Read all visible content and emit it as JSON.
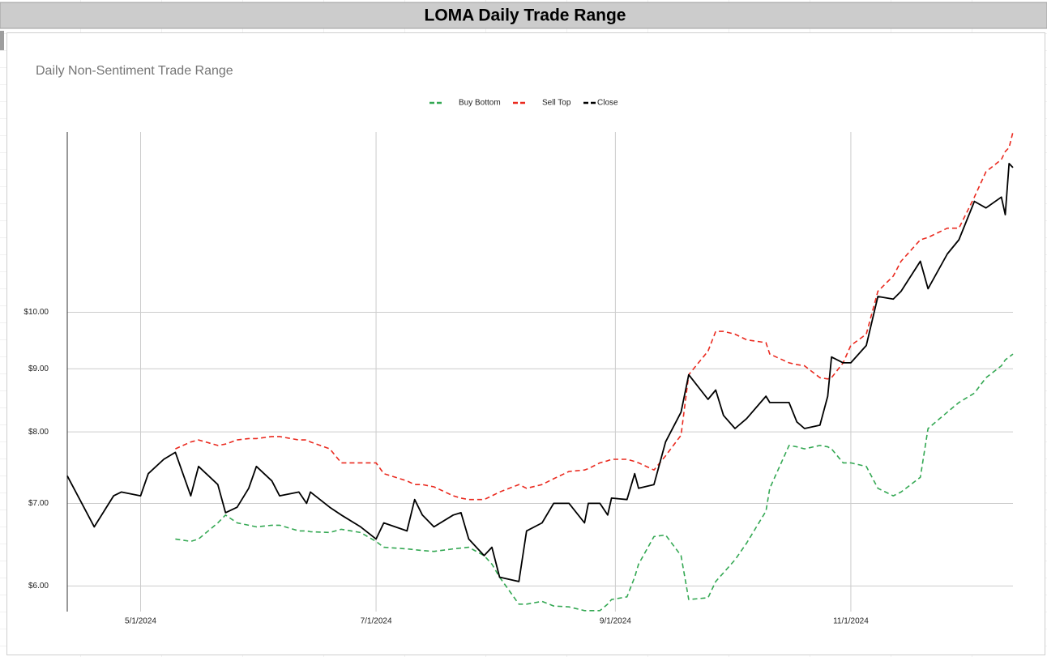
{
  "header": {
    "title": "LOMA Daily Trade Range"
  },
  "chart_data": {
    "type": "line",
    "title": "Daily Non-Sentiment Trade Range",
    "log_y": true,
    "grid": true,
    "legend": "top",
    "x": [
      "4/12/2024",
      "4/19/2024",
      "4/24/2024",
      "4/26/2024",
      "5/1/2024",
      "5/3/2024",
      "5/7/2024",
      "5/10/2024",
      "5/14/2024",
      "5/16/2024",
      "5/21/2024",
      "5/23/2024",
      "5/26/2024",
      "5/29/2024",
      "5/31/2024",
      "6/4/2024",
      "6/6/2024",
      "6/11/2024",
      "6/13/2024",
      "6/14/2024",
      "6/19/2024",
      "6/22/2024",
      "6/27/2024",
      "7/1/2024",
      "7/3/2024",
      "7/9/2024",
      "7/11/2024",
      "7/13/2024",
      "7/16/2024",
      "7/21/2024",
      "7/23/2024",
      "7/25/2024",
      "7/29/2024",
      "7/31/2024",
      "8/2/2024",
      "8/7/2024",
      "8/9/2024",
      "8/13/2024",
      "8/16/2024",
      "8/20/2024",
      "8/24/2024",
      "8/25/2024",
      "8/28/2024",
      "8/30/2024",
      "8/31/2024",
      "9/4/2024",
      "9/6/2024",
      "9/7/2024",
      "9/11/2024",
      "9/14/2024",
      "9/18/2024",
      "9/20/2024",
      "9/25/2024",
      "9/27/2024",
      "9/29/2024",
      "10/2/2024",
      "10/5/2024",
      "10/10/2024",
      "10/11/2024",
      "10/16/2024",
      "10/18/2024",
      "10/20/2024",
      "10/24/2024",
      "10/26/2024",
      "10/27/2024",
      "10/30/2024",
      "11/1/2024",
      "11/5/2024",
      "11/8/2024",
      "11/12/2024",
      "11/14/2024",
      "11/19/2024",
      "11/21/2024",
      "11/26/2024",
      "11/29/2024",
      "12/3/2024",
      "12/6/2024",
      "12/10/2024",
      "12/11/2024",
      "12/12/2024",
      "12/13/2024"
    ],
    "series": [
      {
        "name": "Buy Bottom",
        "color": "#34a853",
        "dashed": true,
        "values": [
          null,
          null,
          null,
          null,
          null,
          null,
          null,
          6.55,
          6.52,
          6.55,
          6.75,
          6.85,
          6.75,
          6.72,
          6.7,
          6.72,
          6.72,
          6.65,
          6.65,
          6.64,
          6.63,
          6.67,
          6.63,
          6.52,
          6.45,
          6.43,
          6.42,
          6.41,
          6.4,
          6.43,
          6.44,
          6.45,
          6.35,
          6.25,
          6.1,
          5.8,
          5.8,
          5.83,
          5.78,
          5.77,
          5.73,
          5.73,
          5.73,
          5.8,
          5.85,
          5.88,
          6.1,
          6.25,
          6.58,
          6.6,
          6.35,
          5.85,
          5.87,
          6.05,
          6.15,
          6.3,
          6.5,
          6.9,
          7.2,
          7.8,
          7.78,
          7.75,
          7.8,
          7.78,
          7.75,
          7.55,
          7.55,
          7.5,
          7.2,
          7.1,
          7.15,
          7.35,
          8.05,
          8.3,
          8.45,
          8.6,
          8.85,
          9.05,
          9.15,
          9.2,
          9.25
        ]
      },
      {
        "name": "Sell Top",
        "color": "#ea2a1f",
        "dashed": true,
        "values": [
          null,
          null,
          null,
          null,
          null,
          null,
          null,
          7.75,
          7.85,
          7.88,
          7.8,
          7.82,
          7.88,
          7.9,
          7.9,
          7.93,
          7.93,
          7.88,
          7.88,
          7.85,
          7.75,
          7.55,
          7.55,
          7.55,
          7.4,
          7.3,
          7.25,
          7.25,
          7.22,
          7.1,
          7.07,
          7.05,
          7.05,
          7.1,
          7.15,
          7.25,
          7.2,
          7.25,
          7.33,
          7.43,
          7.45,
          7.47,
          7.55,
          7.58,
          7.6,
          7.6,
          7.57,
          7.55,
          7.45,
          7.65,
          7.95,
          8.9,
          9.3,
          9.65,
          9.65,
          9.6,
          9.5,
          9.45,
          9.25,
          9.1,
          9.07,
          9.05,
          8.85,
          8.83,
          8.85,
          9.1,
          9.4,
          9.6,
          10.4,
          10.7,
          11.0,
          11.45,
          11.5,
          11.7,
          11.7,
          12.4,
          13.0,
          13.3,
          13.5,
          13.6,
          14.0
        ]
      },
      {
        "name": "Close",
        "color": "#000000",
        "dashed": false,
        "values": [
          7.37,
          6.7,
          7.1,
          7.15,
          7.1,
          7.4,
          7.6,
          7.7,
          7.1,
          7.5,
          7.25,
          6.88,
          6.95,
          7.2,
          7.5,
          7.3,
          7.1,
          7.15,
          7.0,
          7.15,
          6.95,
          6.85,
          6.7,
          6.55,
          6.75,
          6.65,
          7.05,
          6.85,
          6.7,
          6.85,
          6.88,
          6.55,
          6.35,
          6.45,
          6.1,
          6.05,
          6.65,
          6.75,
          7.0,
          7.0,
          6.75,
          7.0,
          7.0,
          6.85,
          7.07,
          7.05,
          7.4,
          7.2,
          7.25,
          7.85,
          8.3,
          8.9,
          8.5,
          8.65,
          8.25,
          8.05,
          8.2,
          8.55,
          8.45,
          8.45,
          8.15,
          8.05,
          8.1,
          8.55,
          9.2,
          9.1,
          9.1,
          9.4,
          10.3,
          10.25,
          10.4,
          11.0,
          10.45,
          11.15,
          11.45,
          12.3,
          12.15,
          12.4,
          12.0,
          13.2,
          13.1
        ]
      }
    ],
    "xlim": [
      "4/12/2024",
      "12/13/2024"
    ],
    "xticks": [
      "5/1/2024",
      "7/1/2024",
      "9/1/2024",
      "11/1/2024"
    ],
    "ylim": [
      5.72,
      14
    ],
    "yticks": [
      {
        "value": 6,
        "label": "$6.00"
      },
      {
        "value": 7,
        "label": "$7.00"
      },
      {
        "value": 8,
        "label": "$8.00"
      },
      {
        "value": 9,
        "label": "$9.00"
      },
      {
        "value": 10,
        "label": "$10.00"
      }
    ]
  }
}
